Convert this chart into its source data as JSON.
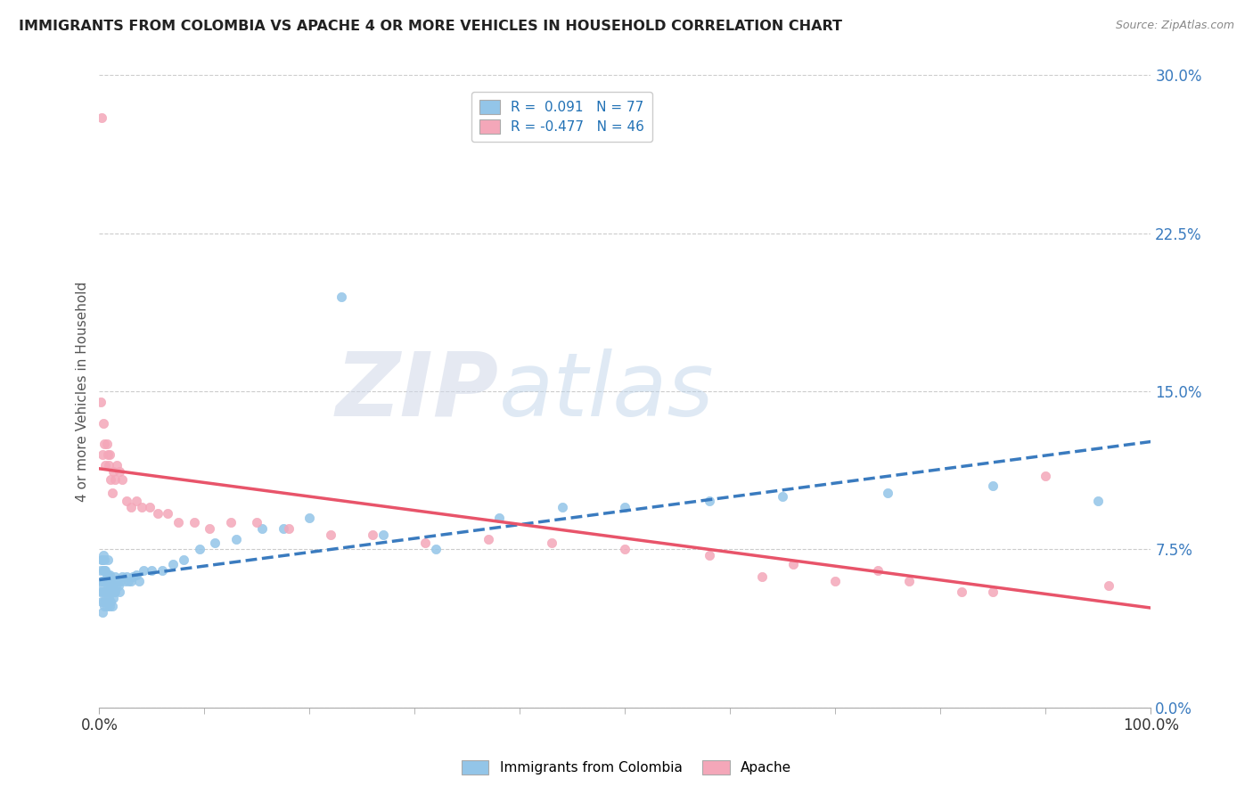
{
  "title": "IMMIGRANTS FROM COLOMBIA VS APACHE 4 OR MORE VEHICLES IN HOUSEHOLD CORRELATION CHART",
  "source": "Source: ZipAtlas.com",
  "ylabel": "4 or more Vehicles in Household",
  "xlim": [
    0,
    1.0
  ],
  "ylim": [
    0,
    0.3
  ],
  "yticks": [
    0.0,
    0.075,
    0.15,
    0.225,
    0.3
  ],
  "ytick_labels": [
    "0.0%",
    "7.5%",
    "15.0%",
    "22.5%",
    "30.0%"
  ],
  "xtick_labels": [
    "0.0%",
    "100.0%"
  ],
  "legend_r1": "R =  0.091",
  "legend_n1": "N = 77",
  "legend_r2": "R = -0.477",
  "legend_n2": "N = 46",
  "color_blue": "#93c5e8",
  "color_pink": "#f4a7b9",
  "color_blue_line": "#3a7bbf",
  "color_pink_line": "#e8546a",
  "watermark_zip": "ZIP",
  "watermark_atlas": "atlas",
  "blue_scatter_x": [
    0.001,
    0.001,
    0.002,
    0.002,
    0.002,
    0.003,
    0.003,
    0.003,
    0.003,
    0.004,
    0.004,
    0.004,
    0.004,
    0.005,
    0.005,
    0.005,
    0.005,
    0.005,
    0.006,
    0.006,
    0.006,
    0.007,
    0.007,
    0.007,
    0.008,
    0.008,
    0.008,
    0.008,
    0.009,
    0.009,
    0.01,
    0.01,
    0.01,
    0.011,
    0.011,
    0.012,
    0.012,
    0.013,
    0.013,
    0.014,
    0.015,
    0.015,
    0.016,
    0.017,
    0.018,
    0.019,
    0.02,
    0.022,
    0.024,
    0.026,
    0.028,
    0.03,
    0.032,
    0.035,
    0.038,
    0.042,
    0.05,
    0.06,
    0.07,
    0.08,
    0.095,
    0.11,
    0.13,
    0.155,
    0.175,
    0.2,
    0.23,
    0.27,
    0.32,
    0.38,
    0.44,
    0.5,
    0.58,
    0.65,
    0.75,
    0.85,
    0.95
  ],
  "blue_scatter_y": [
    0.055,
    0.065,
    0.05,
    0.06,
    0.07,
    0.045,
    0.055,
    0.06,
    0.07,
    0.05,
    0.058,
    0.065,
    0.072,
    0.048,
    0.055,
    0.06,
    0.065,
    0.07,
    0.05,
    0.055,
    0.065,
    0.048,
    0.055,
    0.062,
    0.05,
    0.058,
    0.063,
    0.07,
    0.052,
    0.06,
    0.048,
    0.055,
    0.063,
    0.05,
    0.058,
    0.048,
    0.058,
    0.052,
    0.06,
    0.055,
    0.055,
    0.062,
    0.058,
    0.06,
    0.058,
    0.055,
    0.06,
    0.062,
    0.06,
    0.062,
    0.06,
    0.06,
    0.062,
    0.063,
    0.06,
    0.065,
    0.065,
    0.065,
    0.068,
    0.07,
    0.075,
    0.078,
    0.08,
    0.085,
    0.085,
    0.09,
    0.195,
    0.082,
    0.075,
    0.09,
    0.095,
    0.095,
    0.098,
    0.1,
    0.102,
    0.105,
    0.098
  ],
  "pink_scatter_x": [
    0.001,
    0.002,
    0.003,
    0.004,
    0.005,
    0.006,
    0.007,
    0.008,
    0.009,
    0.01,
    0.011,
    0.012,
    0.013,
    0.015,
    0.017,
    0.019,
    0.022,
    0.026,
    0.03,
    0.035,
    0.04,
    0.048,
    0.056,
    0.065,
    0.075,
    0.09,
    0.105,
    0.125,
    0.15,
    0.18,
    0.22,
    0.26,
    0.31,
    0.37,
    0.43,
    0.5,
    0.58,
    0.66,
    0.74,
    0.82,
    0.9,
    0.96,
    0.63,
    0.7,
    0.77,
    0.85
  ],
  "pink_scatter_y": [
    0.145,
    0.28,
    0.12,
    0.135,
    0.125,
    0.115,
    0.125,
    0.12,
    0.115,
    0.12,
    0.108,
    0.102,
    0.112,
    0.108,
    0.115,
    0.112,
    0.108,
    0.098,
    0.095,
    0.098,
    0.095,
    0.095,
    0.092,
    0.092,
    0.088,
    0.088,
    0.085,
    0.088,
    0.088,
    0.085,
    0.082,
    0.082,
    0.078,
    0.08,
    0.078,
    0.075,
    0.072,
    0.068,
    0.065,
    0.055,
    0.11,
    0.058,
    0.062,
    0.06,
    0.06,
    0.055
  ]
}
